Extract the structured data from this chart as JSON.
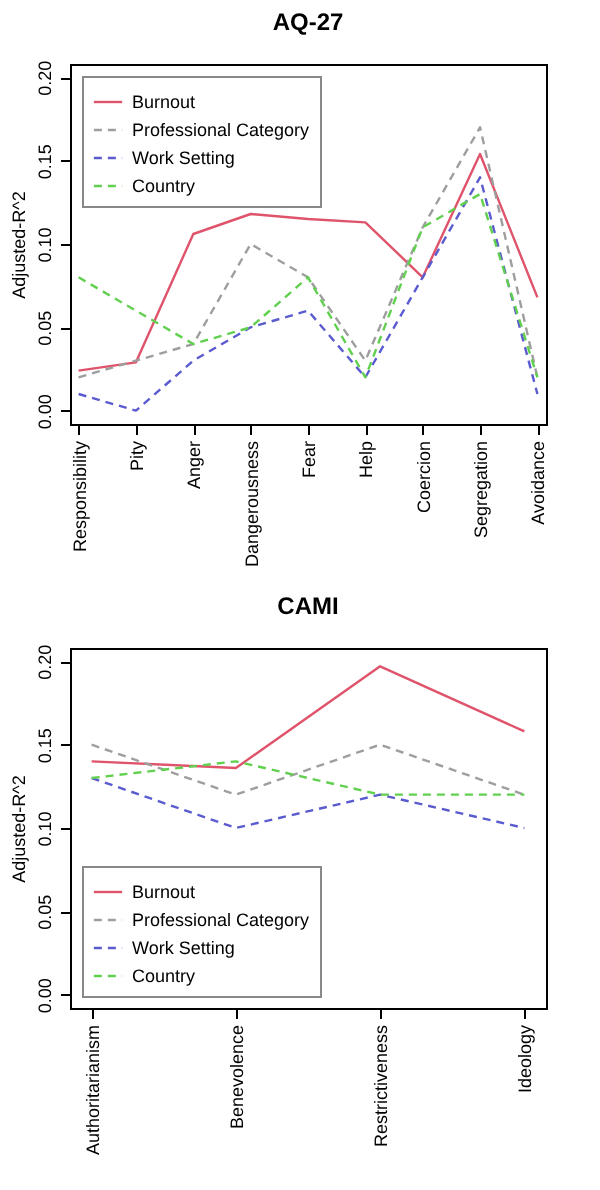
{
  "chart_data": [
    {
      "type": "line",
      "title": "AQ-27",
      "ylabel": "Adjusted-R^2",
      "categories": [
        "Responsibility",
        "Pity",
        "Anger",
        "Dangerousness",
        "Fear",
        "Help",
        "Coercion",
        "Segregation",
        "Avoidance"
      ],
      "series": [
        {
          "name": "Burnout",
          "color": "#df536b",
          "line_style": "solid",
          "values": [
            0.024,
            0.029,
            0.106,
            0.118,
            0.115,
            0.113,
            0.08,
            0.154,
            0.068
          ]
        },
        {
          "name": "Professional Category",
          "color": "#9e9e9e",
          "line_style": "dashed",
          "values": [
            0.02,
            0.03,
            0.04,
            0.1,
            0.08,
            0.03,
            0.11,
            0.17,
            0.02
          ]
        },
        {
          "name": "Work Setting",
          "color": "#5b5bd0",
          "line_style": "dashed",
          "values": [
            0.01,
            0.0,
            0.03,
            0.05,
            0.06,
            0.02,
            0.08,
            0.14,
            0.01
          ]
        },
        {
          "name": "Country",
          "color": "#61d04f",
          "line_style": "dashed",
          "values": [
            0.08,
            0.06,
            0.04,
            0.05,
            0.08,
            0.02,
            0.11,
            0.13,
            0.02
          ]
        }
      ],
      "ylim": [
        -0.008,
        0.208
      ],
      "yticks": [
        {
          "value": 0,
          "label": "0.00"
        },
        {
          "value": 0.05,
          "label": "0.05"
        },
        {
          "value": 0.1,
          "label": "0.10"
        },
        {
          "value": 0.15,
          "label": "0.15"
        },
        {
          "value": 0.2,
          "label": "0.20"
        }
      ],
      "grid": false,
      "legend": "top left",
      "marker": "none"
    },
    {
      "type": "line",
      "title": "CAMI",
      "ylabel": "Adjusted-R^2",
      "categories": [
        "Authoritarianism",
        "Benevolence",
        "Restrictiveness",
        "Ideology"
      ],
      "series": [
        {
          "name": "Burnout",
          "color": "#df536b",
          "line_style": "solid",
          "values": [
            0.14,
            0.136,
            0.197,
            0.158
          ]
        },
        {
          "name": "Professional Category",
          "color": "#9e9e9e",
          "line_style": "dashed",
          "values": [
            0.15,
            0.12,
            0.15,
            0.12
          ]
        },
        {
          "name": "Work Setting",
          "color": "#5b5bd0",
          "line_style": "dashed",
          "values": [
            0.13,
            0.1,
            0.12,
            0.1
          ]
        },
        {
          "name": "Country",
          "color": "#61d04f",
          "line_style": "dashed",
          "values": [
            0.13,
            0.14,
            0.12,
            0.12
          ]
        }
      ],
      "ylim": [
        -0.008,
        0.208
      ],
      "yticks": [
        {
          "value": 0,
          "label": "0.00"
        },
        {
          "value": 0.05,
          "label": "0.05"
        },
        {
          "value": 0.1,
          "label": "0.10"
        },
        {
          "value": 0.15,
          "label": "0.15"
        },
        {
          "value": 0.2,
          "label": "0.20"
        }
      ],
      "grid": false,
      "legend": "bottom left",
      "marker": "none"
    }
  ]
}
